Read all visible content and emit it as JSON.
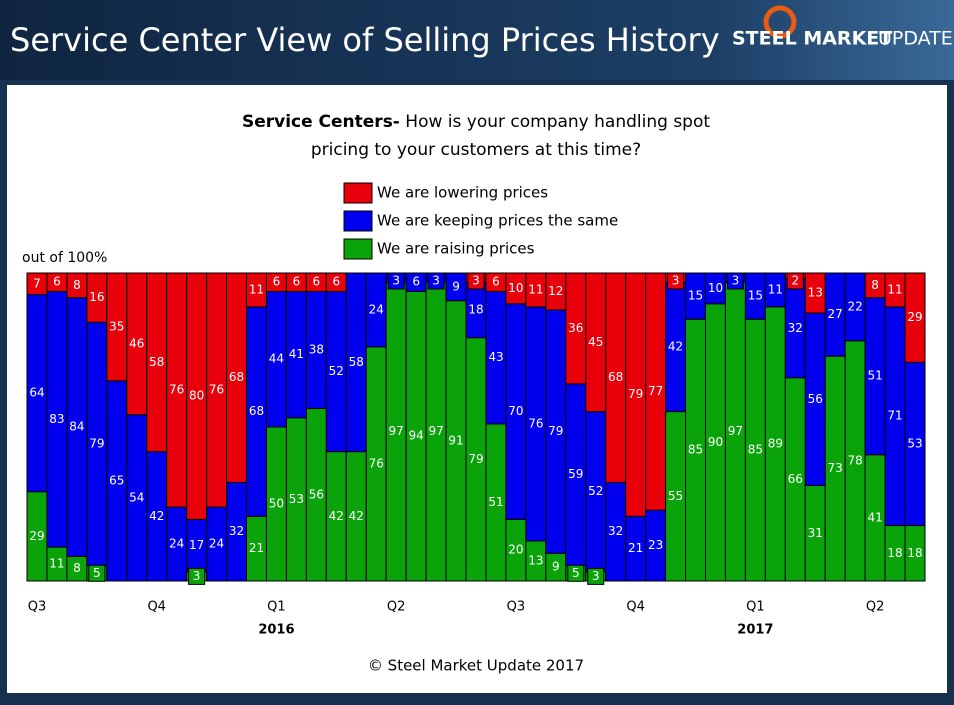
{
  "header": {
    "title": "Service Center View of Selling Prices History",
    "logo_bold": "STEEL MARKET",
    "logo_light": "UPDATE"
  },
  "chart_data": {
    "type": "stacked_bar",
    "title_lead": "Service Centers-",
    "title_lines": [
      "How is your company handling spot",
      "pricing to your customers at this time?"
    ],
    "y_label": "out of 100%",
    "note": "© Steel Market Update 2017",
    "ylim": [
      0,
      100
    ],
    "categories": [
      "Q3",
      null,
      null,
      null,
      null,
      null,
      "Q4",
      null,
      null,
      null,
      null,
      null,
      "Q1",
      null,
      null,
      null,
      null,
      null,
      "Q2",
      null,
      null,
      null,
      null,
      null,
      "Q3",
      null,
      null,
      null,
      null,
      null,
      "Q4",
      null,
      null,
      null,
      null,
      null,
      "Q1",
      null,
      null,
      null,
      null,
      null,
      "Q2",
      null,
      null
    ],
    "category_years": [
      null,
      null,
      null,
      null,
      null,
      null,
      null,
      null,
      null,
      null,
      null,
      null,
      "2016",
      null,
      null,
      null,
      null,
      null,
      null,
      null,
      null,
      null,
      null,
      null,
      null,
      null,
      null,
      null,
      null,
      null,
      null,
      null,
      null,
      null,
      null,
      null,
      "2017",
      null,
      null,
      null,
      null,
      null,
      null,
      null,
      null
    ],
    "series": [
      {
        "name": "We are lowering prices",
        "color": "#e8000b",
        "values": [
          7,
          6,
          8,
          16,
          35,
          46,
          58,
          76,
          80,
          76,
          68,
          11,
          6,
          6,
          6,
          6,
          0,
          0,
          0,
          0,
          0,
          0,
          3,
          6,
          10,
          11,
          12,
          36,
          45,
          68,
          79,
          77,
          3,
          0,
          0,
          0,
          0,
          0,
          2,
          13,
          0,
          0,
          8,
          11,
          29
        ]
      },
      {
        "name": "We are keeping prices the same",
        "color": "#0000ee",
        "values": [
          64,
          83,
          84,
          79,
          65,
          54,
          42,
          24,
          17,
          24,
          32,
          68,
          44,
          41,
          38,
          52,
          58,
          24,
          3,
          6,
          3,
          9,
          18,
          43,
          70,
          76,
          79,
          59,
          52,
          32,
          21,
          23,
          42,
          15,
          10,
          3,
          15,
          11,
          32,
          56,
          27,
          22,
          51,
          71,
          53
        ]
      },
      {
        "name": "We are raising prices",
        "color": "#0aa40a",
        "values": [
          29,
          11,
          8,
          5,
          0,
          0,
          0,
          0,
          3,
          0,
          0,
          21,
          50,
          53,
          56,
          42,
          42,
          76,
          97,
          94,
          97,
          91,
          79,
          51,
          20,
          13,
          9,
          5,
          3,
          0,
          0,
          0,
          55,
          85,
          90,
          97,
          85,
          89,
          66,
          31,
          73,
          78,
          41,
          18,
          18
        ]
      }
    ]
  }
}
